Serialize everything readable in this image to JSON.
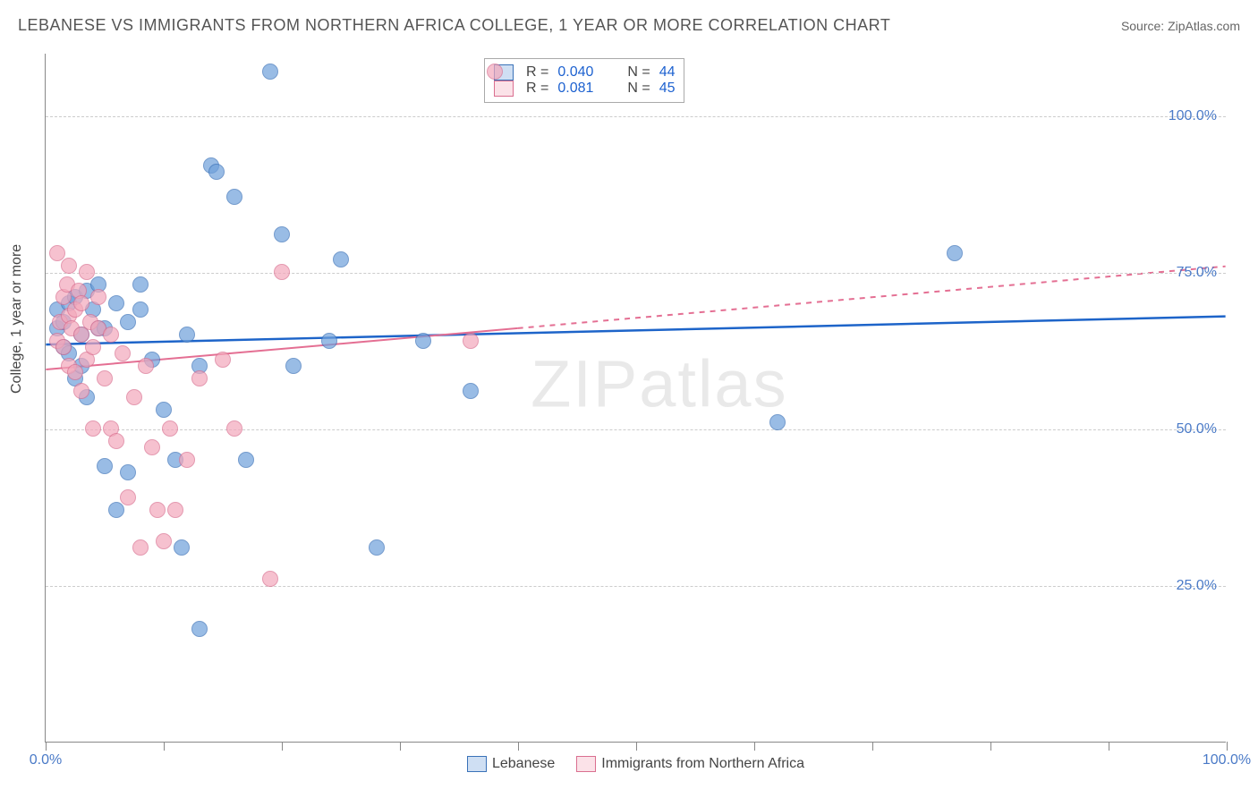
{
  "title": "LEBANESE VS IMMIGRANTS FROM NORTHERN AFRICA COLLEGE, 1 YEAR OR MORE CORRELATION CHART",
  "source_label": "Source:",
  "source_name": "ZipAtlas.com",
  "ylabel": "College, 1 year or more",
  "watermark": {
    "bold": "ZIP",
    "light": "atlas"
  },
  "chart": {
    "type": "scatter",
    "xlim": [
      0,
      100
    ],
    "ylim": [
      0,
      110
    ],
    "grid_h": [
      25,
      50,
      75,
      100
    ],
    "grid_color": "#cccccc",
    "xticks": [
      0,
      10,
      20,
      30,
      40,
      50,
      60,
      70,
      80,
      90,
      100
    ],
    "xtick_labels": {
      "0": "0.0%",
      "100": "100.0%"
    },
    "ytick_labels": {
      "25": "25.0%",
      "50": "50.0%",
      "75": "75.0%",
      "100": "100.0%"
    },
    "marker_radius": 9,
    "marker_fill_opacity": 0.35,
    "marker_stroke_width": 1.5,
    "background_color": "#ffffff"
  },
  "series": [
    {
      "name": "Lebanese",
      "color": "#6fa0db",
      "stroke": "#3a72b8",
      "trend": {
        "y0": 63.5,
        "y1": 68,
        "color": "#1d64c9",
        "width": 2.5,
        "dash": ""
      },
      "stats": {
        "R": "0.040",
        "N": "44"
      },
      "points": [
        [
          1,
          66
        ],
        [
          1,
          69
        ],
        [
          1.5,
          63
        ],
        [
          1.5,
          67
        ],
        [
          2,
          62
        ],
        [
          2,
          70
        ],
        [
          2.5,
          58
        ],
        [
          2.5,
          71
        ],
        [
          3,
          60
        ],
        [
          3,
          65
        ],
        [
          3.5,
          55
        ],
        [
          3.5,
          72
        ],
        [
          4,
          69
        ],
        [
          4.5,
          66
        ],
        [
          4.5,
          73
        ],
        [
          5,
          66
        ],
        [
          5,
          44
        ],
        [
          6,
          37
        ],
        [
          6,
          70
        ],
        [
          7,
          43
        ],
        [
          7,
          67
        ],
        [
          8,
          69
        ],
        [
          8,
          73
        ],
        [
          9,
          61
        ],
        [
          10,
          53
        ],
        [
          11,
          45
        ],
        [
          11.5,
          31
        ],
        [
          13,
          18
        ],
        [
          14,
          92
        ],
        [
          14.5,
          91
        ],
        [
          12,
          65
        ],
        [
          13,
          60
        ],
        [
          16,
          87
        ],
        [
          17,
          45
        ],
        [
          19,
          107
        ],
        [
          20,
          81
        ],
        [
          21,
          60
        ],
        [
          24,
          64
        ],
        [
          25,
          77
        ],
        [
          28,
          31
        ],
        [
          32,
          64
        ],
        [
          36,
          56
        ],
        [
          62,
          51
        ],
        [
          77,
          78
        ]
      ]
    },
    {
      "name": "Immigrants from Northern Africa",
      "color": "#f3a8bb",
      "stroke": "#da6f90",
      "trend": {
        "y0": 59.5,
        "y1": 76,
        "color": "#e46f93",
        "width": 2,
        "dash": "4 4",
        "solid_until": 40
      },
      "stats": {
        "R": "0.081",
        "N": "45"
      },
      "points": [
        [
          1,
          78
        ],
        [
          1,
          64
        ],
        [
          1.2,
          67
        ],
        [
          1.5,
          71
        ],
        [
          1.5,
          63
        ],
        [
          1.8,
          73
        ],
        [
          2,
          60
        ],
        [
          2,
          68
        ],
        [
          2,
          76
        ],
        [
          2.2,
          66
        ],
        [
          2.5,
          59
        ],
        [
          2.5,
          69
        ],
        [
          2.8,
          72
        ],
        [
          3,
          56
        ],
        [
          3,
          65
        ],
        [
          3,
          70
        ],
        [
          3.5,
          75
        ],
        [
          3.5,
          61
        ],
        [
          3.8,
          67
        ],
        [
          4,
          50
        ],
        [
          4,
          63
        ],
        [
          4.5,
          66
        ],
        [
          4.5,
          71
        ],
        [
          5,
          58
        ],
        [
          5.5,
          50
        ],
        [
          5.5,
          65
        ],
        [
          6,
          48
        ],
        [
          6.5,
          62
        ],
        [
          7,
          39
        ],
        [
          7.5,
          55
        ],
        [
          8,
          31
        ],
        [
          8.5,
          60
        ],
        [
          9,
          47
        ],
        [
          9.5,
          37
        ],
        [
          10,
          32
        ],
        [
          10.5,
          50
        ],
        [
          11,
          37
        ],
        [
          12,
          45
        ],
        [
          13,
          58
        ],
        [
          15,
          61
        ],
        [
          16,
          50
        ],
        [
          19,
          26
        ],
        [
          20,
          75
        ],
        [
          36,
          64
        ],
        [
          38,
          107
        ]
      ]
    }
  ],
  "legend_top": {
    "r_label": "R =",
    "n_label": "N ="
  }
}
